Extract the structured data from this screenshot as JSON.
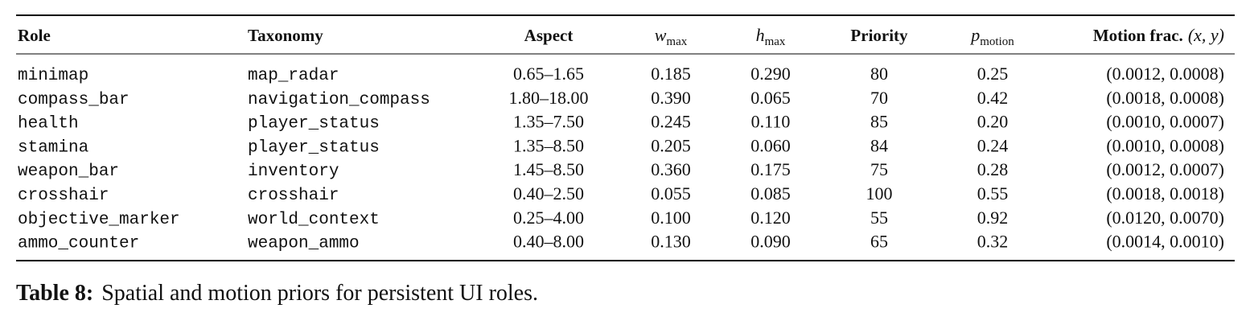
{
  "table": {
    "header": [
      "Role",
      "Taxonomy",
      "Aspect",
      {
        "base": "w",
        "sub": "max"
      },
      {
        "base": "h",
        "sub": "max"
      },
      "Priority",
      {
        "base": "p",
        "sub": "motion"
      },
      {
        "text": "Motion frac.",
        "math": "(x, y)"
      }
    ],
    "rows": [
      [
        "minimap",
        "map_radar",
        "0.65–1.65",
        "0.185",
        "0.290",
        "80",
        "0.25",
        "(0.0012, 0.0008)"
      ],
      [
        "compass_bar",
        "navigation_compass",
        "1.80–18.00",
        "0.390",
        "0.065",
        "70",
        "0.42",
        "(0.0018, 0.0008)"
      ],
      [
        "health",
        "player_status",
        "1.35–7.50",
        "0.245",
        "0.110",
        "85",
        "0.20",
        "(0.0010, 0.0007)"
      ],
      [
        "stamina",
        "player_status",
        "1.35–8.50",
        "0.205",
        "0.060",
        "84",
        "0.24",
        "(0.0010, 0.0008)"
      ],
      [
        "weapon_bar",
        "inventory",
        "1.45–8.50",
        "0.360",
        "0.175",
        "75",
        "0.28",
        "(0.0012, 0.0007)"
      ],
      [
        "crosshair",
        "crosshair",
        "0.40–2.50",
        "0.055",
        "0.085",
        "100",
        "0.55",
        "(0.0018, 0.0018)"
      ],
      [
        "objective_marker",
        "world_context",
        "0.25–4.00",
        "0.100",
        "0.120",
        "55",
        "0.92",
        "(0.0120, 0.0070)"
      ],
      [
        "ammo_counter",
        "weapon_ammo",
        "0.40–8.00",
        "0.130",
        "0.090",
        "65",
        "0.32",
        "(0.0014, 0.0010)"
      ]
    ]
  },
  "caption": {
    "label": "Table 8:",
    "text": "Spatial and motion priors for persistent UI roles."
  }
}
